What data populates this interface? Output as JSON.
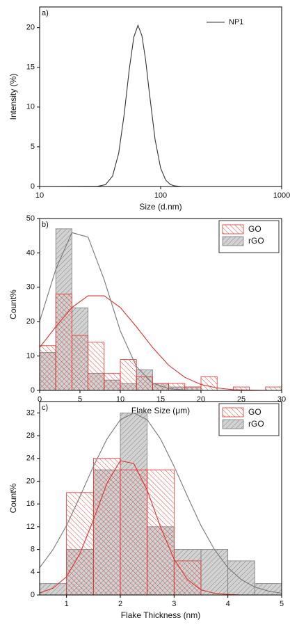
{
  "chart_data": [
    {
      "type": "line",
      "label": "a)",
      "xlabel": "Size (d.nm)",
      "ylabel": "Intensity (%)",
      "xscale": "log",
      "xlim": [
        10,
        1000
      ],
      "xticks": [
        10,
        100,
        1000
      ],
      "ylim": [
        0,
        22.6
      ],
      "yticks": [
        0,
        5,
        10,
        15,
        20
      ],
      "legend": "upper right",
      "series": [
        {
          "name": "NP1",
          "color": "#333333",
          "x": [
            10,
            30,
            35,
            40,
            45,
            50,
            55,
            60,
            65,
            70,
            75,
            80,
            90,
            100,
            110,
            120,
            130,
            150,
            1000
          ],
          "values": [
            0,
            0.02,
            0.23,
            1.3,
            4.2,
            9.1,
            14.7,
            18.8,
            20.3,
            19.0,
            16.0,
            12.3,
            5.9,
            2.3,
            0.82,
            0.26,
            0.08,
            0,
            0
          ]
        }
      ]
    },
    {
      "type": "histogram",
      "label": "b)",
      "xlabel": "Flake Size (μm)",
      "ylabel": "Count%",
      "xlim": [
        0,
        30
      ],
      "xticks": [
        0,
        5,
        10,
        15,
        20,
        25,
        30
      ],
      "ylim": [
        0,
        50
      ],
      "yticks": [
        0,
        10,
        20,
        30,
        40,
        50
      ],
      "legend": "upper right",
      "bins": [
        0,
        2,
        4,
        6,
        8,
        10,
        12,
        14,
        16,
        18,
        20,
        22,
        24,
        26,
        28,
        30
      ],
      "series": [
        {
          "name": "GO",
          "color": "#e0302a",
          "fill": "transparent",
          "values": [
            13,
            28,
            16,
            14,
            5,
            9,
            4,
            2,
            2,
            1,
            4,
            0,
            1,
            0,
            1
          ]
        },
        {
          "name": "rGO",
          "color": "#7a7a7a",
          "fill": "#d2d2d2",
          "values": [
            11,
            47,
            24,
            5,
            3,
            2,
            6,
            2,
            1,
            1,
            0,
            0,
            0,
            0,
            0
          ]
        }
      ],
      "curves": [
        {
          "color": "#e0302a",
          "x": [
            0,
            2,
            4,
            6,
            8,
            10,
            12,
            14,
            16,
            18,
            20,
            22,
            24,
            26,
            28,
            30
          ],
          "values": [
            12.5,
            18.5,
            24.1,
            27.5,
            27.5,
            24.1,
            18.5,
            12.5,
            7.3,
            3.8,
            1.7,
            0.7,
            0.2,
            0.1,
            0,
            0
          ]
        },
        {
          "color": "#777777",
          "x": [
            0,
            2,
            4,
            6,
            8,
            10,
            12,
            14,
            16,
            18,
            20,
            22,
            24,
            26,
            28,
            30
          ],
          "values": [
            20.1,
            35.2,
            45.9,
            44.6,
            32.2,
            17.3,
            6.9,
            2.1,
            0.5,
            0.1,
            0,
            0,
            0,
            0,
            0,
            0
          ]
        }
      ]
    },
    {
      "type": "histogram",
      "label": "c)",
      "xlabel": "Flake Thickness (nm)",
      "ylabel": "Count%",
      "xlim": [
        0.5,
        5
      ],
      "xticks": [
        1,
        2,
        3,
        4,
        5
      ],
      "ylim": [
        0,
        34
      ],
      "yticks": [
        0,
        4,
        8,
        12,
        16,
        20,
        24,
        28,
        32
      ],
      "legend": "upper right",
      "bins": [
        0.5,
        1,
        1.5,
        2,
        2.5,
        3,
        3.5,
        4,
        4.5,
        5
      ],
      "series": [
        {
          "name": "GO",
          "color": "#e0302a",
          "fill": "transparent",
          "values": [
            0,
            18,
            24,
            22,
            22,
            6,
            0,
            0,
            0
          ]
        },
        {
          "name": "rGO",
          "color": "#7a7a7a",
          "fill": "#d2d2d2",
          "values": [
            2,
            8,
            22,
            32,
            12,
            8,
            8,
            6,
            2
          ]
        }
      ],
      "curves": [
        {
          "color": "#e0302a",
          "x": [
            0.5,
            0.75,
            1,
            1.25,
            1.5,
            1.75,
            2,
            2.25,
            2.5,
            2.75,
            3,
            3.25,
            3.5,
            3.75,
            4,
            4.25,
            4.5,
            4.75,
            5
          ],
          "values": [
            0.35,
            1.2,
            3.2,
            7.3,
            13.2,
            19.6,
            23.6,
            23.1,
            18.4,
            11.9,
            6.3,
            2.7,
            0.9,
            0.3,
            0.1,
            0,
            0,
            0,
            0
          ]
        },
        {
          "color": "#777777",
          "x": [
            0.5,
            0.75,
            1,
            1.25,
            1.5,
            1.75,
            2,
            2.25,
            2.5,
            2.75,
            3,
            3.25,
            3.5,
            3.75,
            4,
            4.25,
            4.5,
            4.75,
            5
          ],
          "values": [
            4.8,
            8.0,
            12.2,
            17.3,
            22.6,
            27.4,
            30.8,
            32,
            30.8,
            27.4,
            22.6,
            17.3,
            12.2,
            8.0,
            4.8,
            2.7,
            1.4,
            0.7,
            0.3
          ]
        }
      ]
    }
  ]
}
